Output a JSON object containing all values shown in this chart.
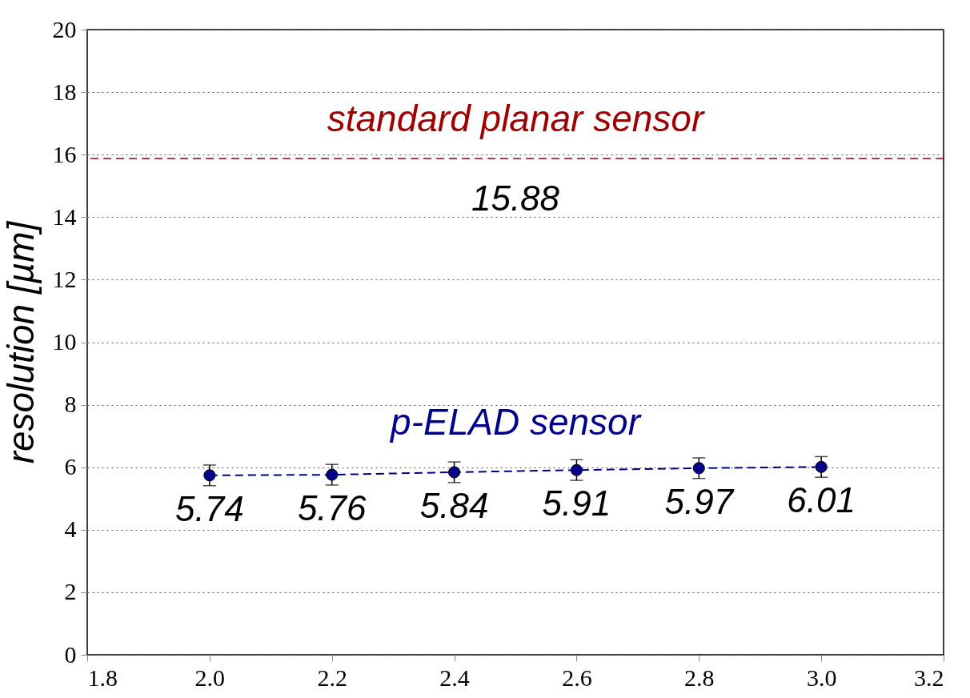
{
  "chart_data": {
    "type": "line",
    "ylabel": "resolution [µm]",
    "x": [
      2.0,
      2.2,
      2.4,
      2.6,
      2.8,
      3.0
    ],
    "series": [
      {
        "name": "p-ELAD sensor",
        "color": "#00008b",
        "values": [
          5.74,
          5.76,
          5.84,
          5.91,
          5.97,
          6.01
        ],
        "errors": [
          0.33,
          0.33,
          0.33,
          0.33,
          0.33,
          0.33
        ]
      }
    ],
    "xlim": [
      1.8,
      3.2
    ],
    "xticks": [
      {
        "value": 1.8,
        "label": "1.8"
      },
      {
        "value": 2.0,
        "label": "2.0"
      },
      {
        "value": 2.2,
        "label": "2.2"
      },
      {
        "value": 2.4,
        "label": "2.4"
      },
      {
        "value": 2.6,
        "label": "2.6"
      },
      {
        "value": 2.8,
        "label": "2.8"
      },
      {
        "value": 3.0,
        "label": "3.0"
      },
      {
        "value": 3.2,
        "label": "3.2"
      }
    ],
    "ylim": [
      0,
      20
    ],
    "yticks": [
      0,
      2,
      4,
      6,
      8,
      10,
      12,
      14,
      16,
      18,
      20
    ],
    "ref_lines": [
      {
        "axis": "y",
        "value": 15.88,
        "label": "15.88",
        "color": "#a00000",
        "line_style": "dashed"
      }
    ],
    "annotations": [
      "standard planar sensor"
    ],
    "data_labels": true,
    "grid": "y",
    "marker": "circle",
    "line_style": "dashed"
  }
}
